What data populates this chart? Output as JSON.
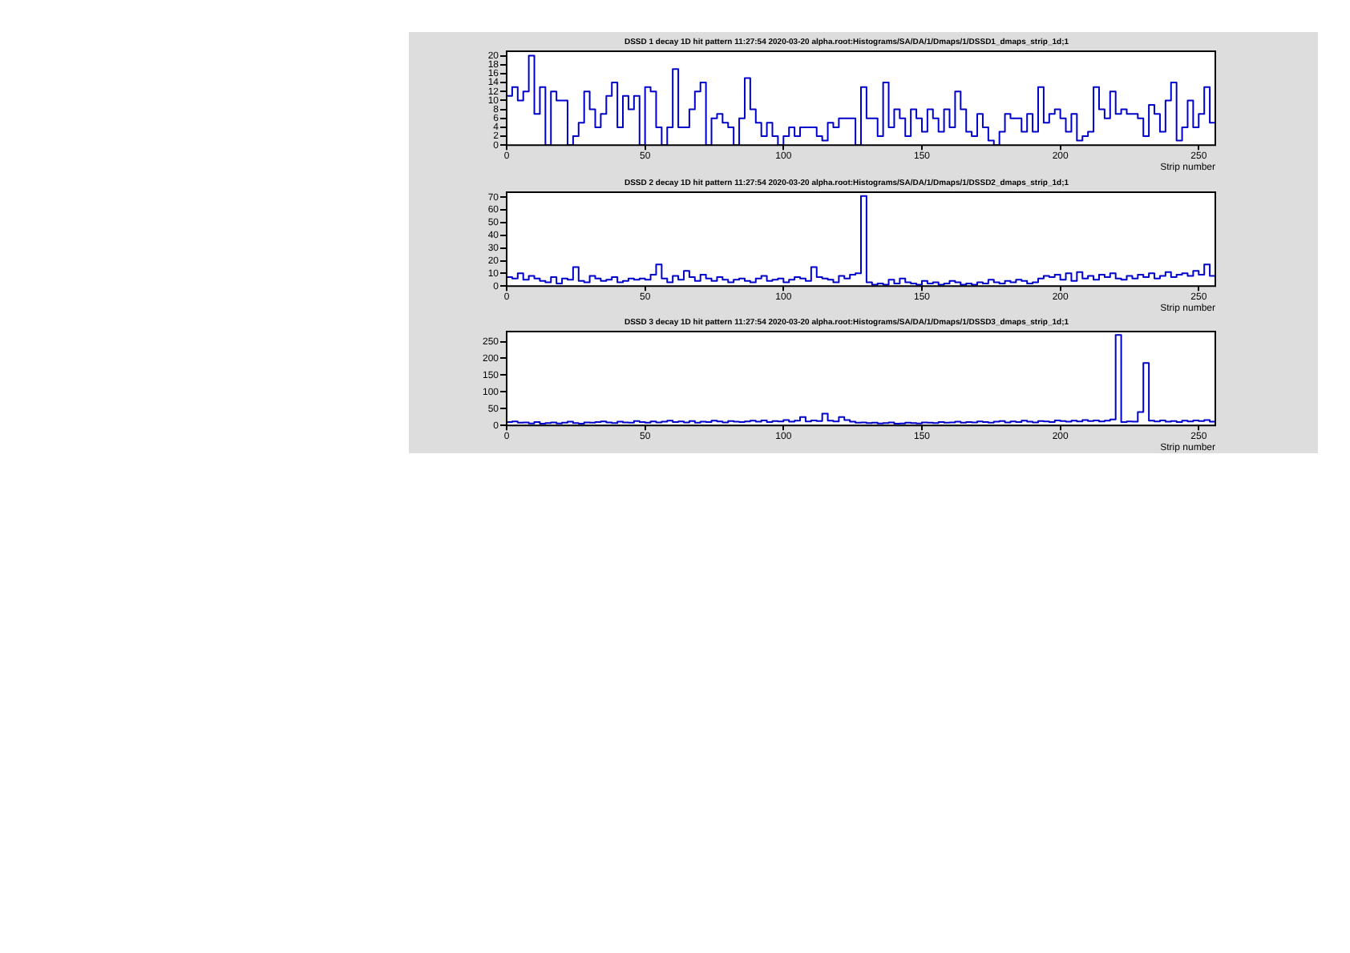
{
  "chart_data": [
    {
      "type": "histogram",
      "title": "DSSD 1 decay 1D hit pattern 11:27:54 2020-03-20 alpha.root:Histograms/SA/DA/1/Dmaps/1/DSSD1_dmaps_strip_1d;1",
      "xlabel": "Strip number",
      "color": "#0000cc",
      "xlim": [
        0,
        256
      ],
      "xticks": [
        0,
        50,
        100,
        150,
        200,
        250
      ],
      "ylim": [
        0,
        21
      ],
      "yticks": [
        0,
        2,
        4,
        6,
        8,
        10,
        12,
        14,
        16,
        18,
        20
      ],
      "bins": [
        0,
        2,
        4,
        6,
        8,
        10,
        12,
        14,
        16,
        18,
        20,
        22,
        24,
        26,
        28,
        30,
        32,
        34,
        36,
        38,
        40,
        42,
        44,
        46,
        48,
        50,
        52,
        54,
        56,
        58,
        60,
        62,
        64,
        66,
        68,
        70,
        72,
        74,
        76,
        78,
        80,
        82,
        84,
        86,
        88,
        90,
        92,
        94,
        96,
        98,
        100,
        102,
        104,
        106,
        108,
        110,
        112,
        114,
        116,
        118,
        120,
        122,
        124,
        126,
        128,
        130,
        132,
        134,
        136,
        138,
        140,
        142,
        144,
        146,
        148,
        150,
        152,
        154,
        156,
        158,
        160,
        162,
        164,
        166,
        168,
        170,
        172,
        174,
        176,
        178,
        180,
        182,
        184,
        186,
        188,
        190,
        192,
        194,
        196,
        198,
        200,
        202,
        204,
        206,
        208,
        210,
        212,
        214,
        216,
        218,
        220,
        222,
        224,
        226,
        228,
        230,
        232,
        234,
        236,
        238,
        240,
        242,
        244,
        246,
        248,
        250,
        252,
        254,
        256
      ],
      "values": [
        11,
        13,
        10,
        12,
        20,
        7,
        13,
        0,
        12,
        10,
        10,
        0,
        2,
        5,
        12,
        8,
        4,
        7,
        11,
        14,
        4,
        11,
        8,
        11,
        0,
        13,
        12,
        4,
        0,
        4,
        17,
        4,
        4,
        8,
        12,
        14,
        0,
        6,
        7,
        5,
        4,
        0,
        6,
        15,
        8,
        5,
        2,
        5,
        2,
        0,
        2,
        4,
        2,
        4,
        4,
        4,
        2,
        1,
        5,
        4,
        6,
        6,
        6,
        0,
        13,
        6,
        6,
        2,
        14,
        4,
        8,
        6,
        2,
        8,
        6,
        3,
        8,
        6,
        3,
        8,
        4,
        12,
        8,
        3,
        2,
        7,
        4,
        1,
        0,
        3,
        7,
        6,
        6,
        3,
        7,
        3,
        13,
        5,
        7,
        8,
        6,
        3,
        7,
        1,
        2,
        3,
        13,
        8,
        6,
        12,
        7,
        8,
        7,
        7,
        6,
        2,
        9,
        7,
        3,
        10,
        14,
        1,
        4,
        10,
        4,
        7,
        13,
        5
      ]
    },
    {
      "type": "histogram",
      "title": "DSSD 2 decay 1D hit pattern 11:27:54 2020-03-20 alpha.root:Histograms/SA/DA/1/Dmaps/1/DSSD2_dmaps_strip_1d;1",
      "xlabel": "Strip number",
      "color": "#0000cc",
      "xlim": [
        0,
        256
      ],
      "xticks": [
        0,
        50,
        100,
        150,
        200,
        250
      ],
      "ylim": [
        0,
        74
      ],
      "yticks": [
        0,
        10,
        20,
        30,
        40,
        50,
        60,
        70
      ],
      "bins": [
        0,
        2,
        4,
        6,
        8,
        10,
        12,
        14,
        16,
        18,
        20,
        22,
        24,
        26,
        28,
        30,
        32,
        34,
        36,
        38,
        40,
        42,
        44,
        46,
        48,
        50,
        52,
        54,
        56,
        58,
        60,
        62,
        64,
        66,
        68,
        70,
        72,
        74,
        76,
        78,
        80,
        82,
        84,
        86,
        88,
        90,
        92,
        94,
        96,
        98,
        100,
        102,
        104,
        106,
        108,
        110,
        112,
        114,
        116,
        118,
        120,
        122,
        124,
        126,
        128,
        130,
        132,
        134,
        136,
        138,
        140,
        142,
        144,
        146,
        148,
        150,
        152,
        154,
        156,
        158,
        160,
        162,
        164,
        166,
        168,
        170,
        172,
        174,
        176,
        178,
        180,
        182,
        184,
        186,
        188,
        190,
        192,
        194,
        196,
        198,
        200,
        202,
        204,
        206,
        208,
        210,
        212,
        214,
        216,
        218,
        220,
        222,
        224,
        226,
        228,
        230,
        232,
        234,
        236,
        238,
        240,
        242,
        244,
        246,
        248,
        250,
        252,
        254,
        256
      ],
      "values": [
        7,
        6,
        10,
        5,
        8,
        6,
        4,
        3,
        7,
        2,
        6,
        5,
        15,
        4,
        3,
        8,
        6,
        4,
        5,
        7,
        3,
        4,
        6,
        5,
        6,
        5,
        9,
        17,
        6,
        3,
        8,
        5,
        12,
        7,
        4,
        9,
        6,
        4,
        7,
        5,
        3,
        5,
        6,
        4,
        3,
        6,
        8,
        4,
        5,
        6,
        3,
        5,
        7,
        6,
        4,
        15,
        7,
        6,
        5,
        3,
        8,
        6,
        9,
        10,
        71,
        3,
        1,
        2,
        1,
        5,
        2,
        6,
        3,
        2,
        1,
        4,
        2,
        3,
        1,
        2,
        4,
        3,
        1,
        2,
        1,
        3,
        2,
        5,
        3,
        2,
        4,
        3,
        5,
        4,
        2,
        3,
        6,
        8,
        7,
        9,
        5,
        10,
        4,
        11,
        6,
        8,
        5,
        9,
        7,
        10,
        6,
        5,
        8,
        6,
        9,
        7,
        10,
        6,
        8,
        11,
        7,
        9,
        10,
        8,
        12,
        9,
        17,
        8
      ]
    },
    {
      "type": "histogram",
      "title": "DSSD 3 decay 1D hit pattern 11:27:54 2020-03-20 alpha.root:Histograms/SA/DA/1/Dmaps/1/DSSD3_dmaps_strip_1d;1",
      "xlabel": "Strip number",
      "color": "#0000cc",
      "xlim": [
        0,
        256
      ],
      "xticks": [
        0,
        50,
        100,
        150,
        200,
        250
      ],
      "ylim": [
        0,
        280
      ],
      "yticks": [
        0,
        50,
        100,
        150,
        200,
        250
      ],
      "bins": [
        0,
        2,
        4,
        6,
        8,
        10,
        12,
        14,
        16,
        18,
        20,
        22,
        24,
        26,
        28,
        30,
        32,
        34,
        36,
        38,
        40,
        42,
        44,
        46,
        48,
        50,
        52,
        54,
        56,
        58,
        60,
        62,
        64,
        66,
        68,
        70,
        72,
        74,
        76,
        78,
        80,
        82,
        84,
        86,
        88,
        90,
        92,
        94,
        96,
        98,
        100,
        102,
        104,
        106,
        108,
        110,
        112,
        114,
        116,
        118,
        120,
        122,
        124,
        126,
        128,
        130,
        132,
        134,
        136,
        138,
        140,
        142,
        144,
        146,
        148,
        150,
        152,
        154,
        156,
        158,
        160,
        162,
        164,
        166,
        168,
        170,
        172,
        174,
        176,
        178,
        180,
        182,
        184,
        186,
        188,
        190,
        192,
        194,
        196,
        198,
        200,
        202,
        204,
        206,
        208,
        210,
        212,
        214,
        216,
        218,
        220,
        222,
        224,
        226,
        228,
        230,
        232,
        234,
        236,
        238,
        240,
        242,
        244,
        246,
        248,
        250,
        252,
        254,
        256
      ],
      "values": [
        10,
        12,
        8,
        9,
        6,
        10,
        5,
        7,
        9,
        6,
        8,
        11,
        7,
        5,
        9,
        8,
        10,
        12,
        9,
        7,
        11,
        9,
        8,
        13,
        10,
        8,
        12,
        9,
        11,
        14,
        10,
        12,
        9,
        13,
        8,
        11,
        10,
        14,
        12,
        9,
        13,
        11,
        10,
        12,
        14,
        11,
        15,
        10,
        13,
        12,
        16,
        11,
        14,
        25,
        12,
        15,
        13,
        35,
        14,
        12,
        25,
        16,
        11,
        8,
        9,
        7,
        8,
        6,
        7,
        9,
        5,
        6,
        8,
        7,
        6,
        9,
        8,
        7,
        10,
        8,
        9,
        11,
        8,
        10,
        9,
        12,
        10,
        8,
        11,
        13,
        9,
        12,
        10,
        14,
        11,
        9,
        13,
        12,
        10,
        15,
        13,
        11,
        14,
        12,
        16,
        13,
        15,
        12,
        14,
        18,
        270,
        10,
        12,
        11,
        40,
        186,
        14,
        12,
        15,
        11,
        13,
        10,
        14,
        12,
        15,
        13,
        16,
        11
      ]
    }
  ]
}
